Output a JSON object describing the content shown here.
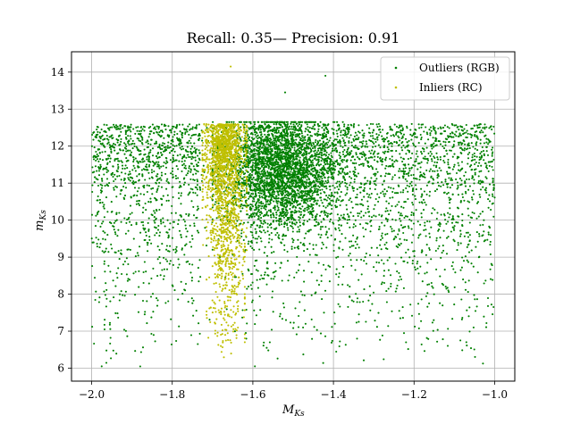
{
  "chart_data": {
    "type": "scatter",
    "title": "Recall: 0.35— Precision: 0.91",
    "xlabel": "M_Ks",
    "ylabel": "m_Ks",
    "xlim": [
      -2.05,
      -0.95
    ],
    "ylim": [
      5.65,
      14.55
    ],
    "x_ticks": [
      -2.0,
      -1.8,
      -1.6,
      -1.4,
      -1.2,
      -1.0
    ],
    "x_tick_labels": [
      "−2.0",
      "−1.8",
      "−1.6",
      "−1.4",
      "−1.2",
      "−1.0"
    ],
    "y_ticks": [
      6,
      7,
      8,
      9,
      10,
      11,
      12,
      13,
      14
    ],
    "y_tick_labels": [
      "6",
      "7",
      "8",
      "9",
      "10",
      "11",
      "12",
      "13",
      "14"
    ],
    "grid": true,
    "legend_position": "top-right",
    "series": [
      {
        "name": "Outliers (RGB)",
        "color": "#008000",
        "description_density": "dense band m 10-12.6 over x -2.0 to -1.0, strongest near x -1.6 to -1.45",
        "approx_count": 6500
      },
      {
        "name": "Inliers (RC)",
        "color": "#bfbf00",
        "description_density": "vertical strip x -1.72 to -1.62, m 6.2 to 12.6, densest m 10-12.5",
        "approx_count": 1800
      }
    ],
    "notable_points": [
      {
        "series": "Inliers (RC)",
        "x": -1.655,
        "y": 14.15
      },
      {
        "series": "Outliers (RGB)",
        "x": -1.42,
        "y": 13.9
      },
      {
        "series": "Outliers (RGB)",
        "x": -1.52,
        "y": 13.45
      },
      {
        "series": "Outliers (RGB)",
        "x": -1.975,
        "y": 6.05
      },
      {
        "series": "Outliers (RGB)",
        "x": -1.595,
        "y": 6.05
      },
      {
        "series": "Outliers (RGB)",
        "x": -1.085,
        "y": 6.75
      },
      {
        "series": "Outliers (RGB)",
        "x": -1.22,
        "y": 6.7
      }
    ]
  }
}
